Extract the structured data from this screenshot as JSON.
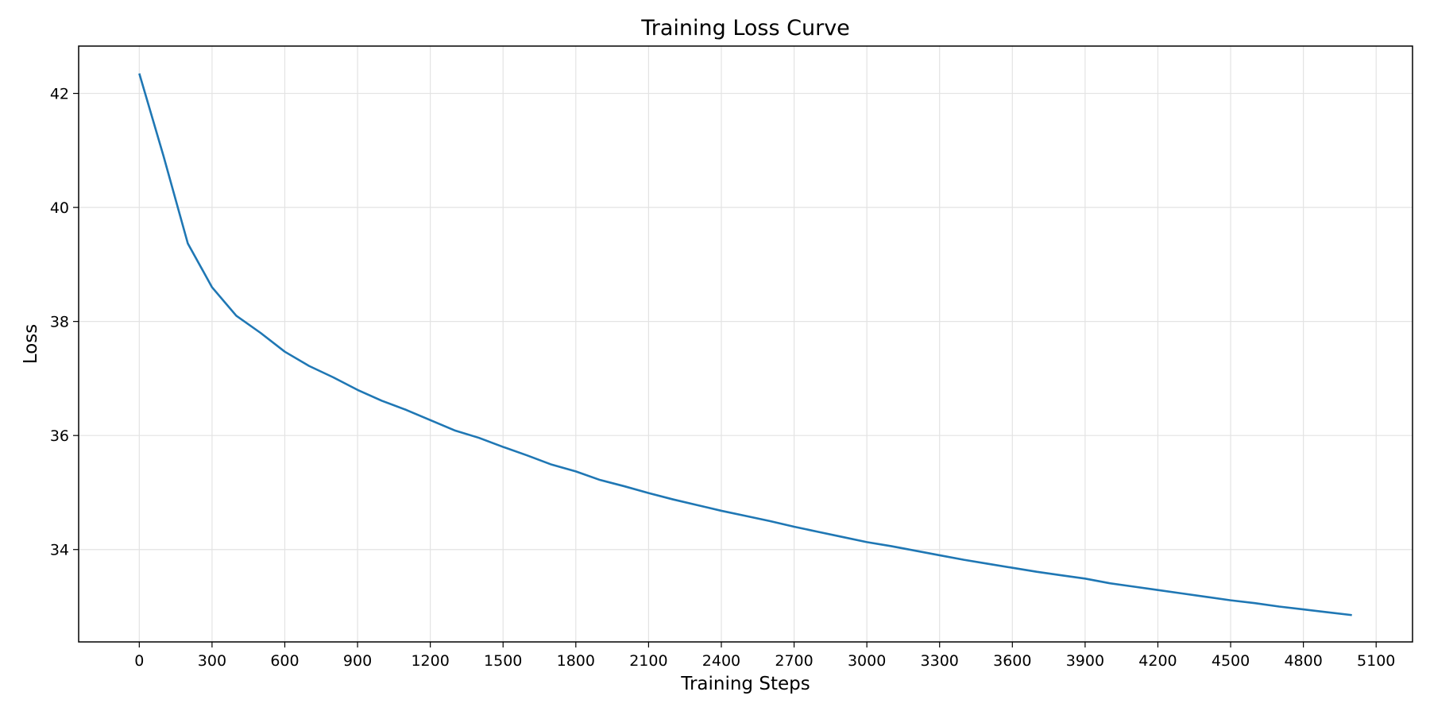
{
  "chart_data": {
    "type": "line",
    "title": "Training Loss Curve",
    "xlabel": "Training Steps",
    "ylabel": "Loss",
    "xlim": [
      -250,
      5250
    ],
    "ylim": [
      32.38,
      42.83
    ],
    "xticks": [
      0,
      300,
      600,
      900,
      1200,
      1500,
      1800,
      2100,
      2400,
      2700,
      3000,
      3300,
      3600,
      3900,
      4200,
      4500,
      4800,
      5100
    ],
    "yticks": [
      34,
      36,
      38,
      40,
      42
    ],
    "grid": true,
    "series": [
      {
        "name": "",
        "color": "#1f77b4",
        "x": [
          0,
          100,
          200,
          300,
          400,
          500,
          600,
          700,
          800,
          900,
          1000,
          1100,
          1200,
          1300,
          1400,
          1500,
          1600,
          1700,
          1800,
          1900,
          2000,
          2100,
          2200,
          2300,
          2400,
          2500,
          2600,
          2700,
          2800,
          2900,
          3000,
          3100,
          3200,
          3300,
          3400,
          3500,
          3600,
          3700,
          3800,
          3900,
          4000,
          4100,
          4200,
          4300,
          4400,
          4500,
          4600,
          4700,
          4800,
          4900,
          5000
        ],
        "y": [
          42.35,
          40.9,
          39.37,
          38.6,
          38.1,
          37.8,
          37.47,
          37.22,
          37.02,
          36.8,
          36.61,
          36.45,
          36.27,
          36.09,
          35.96,
          35.8,
          35.65,
          35.49,
          35.37,
          35.22,
          35.11,
          34.99,
          34.88,
          34.78,
          34.68,
          34.59,
          34.5,
          34.4,
          34.31,
          34.22,
          34.13,
          34.06,
          33.98,
          33.9,
          33.82,
          33.75,
          33.68,
          33.61,
          33.55,
          33.49,
          33.41,
          33.35,
          33.29,
          33.23,
          33.17,
          33.11,
          33.06,
          33.0,
          32.95,
          32.9,
          32.85
        ]
      }
    ]
  }
}
